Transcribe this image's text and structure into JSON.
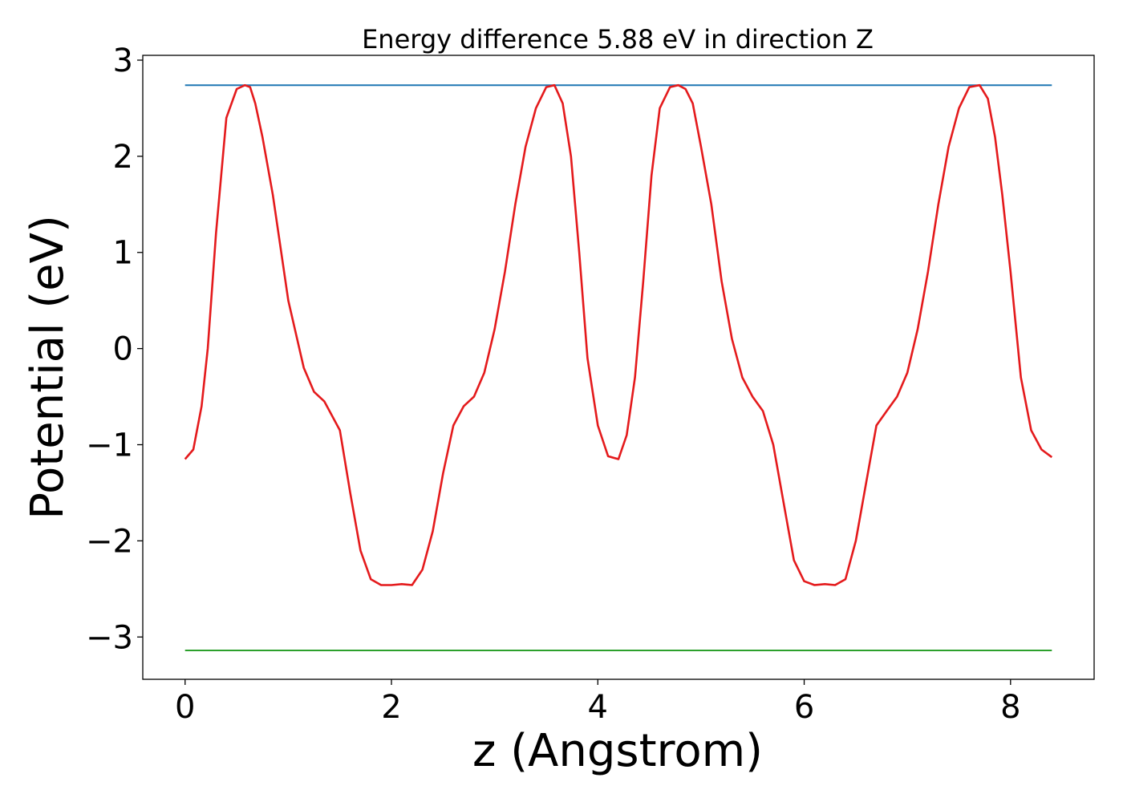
{
  "chart_data": {
    "type": "line",
    "title": "Energy difference 5.88 eV in direction Z",
    "xlabel": "z (Angstrom)",
    "ylabel": "Potential (eV)",
    "xlim": [
      -0.41,
      8.81
    ],
    "ylim": [
      -3.44,
      3.05
    ],
    "xticks": [
      0,
      2,
      4,
      6,
      8
    ],
    "xtick_labels": [
      "0",
      "2",
      "4",
      "6",
      "8"
    ],
    "yticks": [
      -3,
      -2,
      -1,
      0,
      1,
      2,
      3
    ],
    "ytick_labels": [
      "−3",
      "−2",
      "−1",
      "0",
      "1",
      "2",
      "3"
    ],
    "grid": false,
    "series": [
      {
        "color": "#1f77b4",
        "x": [
          0.0,
          8.4
        ],
        "values": [
          2.74,
          2.74
        ]
      },
      {
        "color": "#2ca02c",
        "x": [
          0.0,
          8.4
        ],
        "values": [
          -3.14,
          -3.14
        ]
      },
      {
        "color": "#e41a1c",
        "x": [
          0.0,
          0.08,
          0.16,
          0.22,
          0.3,
          0.4,
          0.5,
          0.58,
          0.63,
          0.68,
          0.75,
          0.85,
          1.0,
          1.15,
          1.25,
          1.35,
          1.5,
          1.6,
          1.7,
          1.8,
          1.9,
          2.0,
          2.1,
          2.2,
          2.3,
          2.4,
          2.5,
          2.6,
          2.7,
          2.8,
          2.9,
          3.0,
          3.1,
          3.2,
          3.3,
          3.4,
          3.5,
          3.58,
          3.66,
          3.74,
          3.82,
          3.9,
          4.0,
          4.1,
          4.2,
          4.28,
          4.36,
          4.44,
          4.52,
          4.6,
          4.7,
          4.78,
          4.85,
          4.92,
          5.0,
          5.1,
          5.2,
          5.3,
          5.4,
          5.5,
          5.6,
          5.7,
          5.8,
          5.9,
          6.0,
          6.1,
          6.2,
          6.3,
          6.4,
          6.5,
          6.6,
          6.7,
          6.8,
          6.9,
          7.0,
          7.1,
          7.2,
          7.3,
          7.4,
          7.5,
          7.6,
          7.7,
          7.78,
          7.85,
          7.92,
          8.0,
          8.1,
          8.2,
          8.3,
          8.4
        ],
        "values": [
          -1.15,
          -1.05,
          -0.6,
          0.0,
          1.2,
          2.4,
          2.7,
          2.74,
          2.72,
          2.55,
          2.2,
          1.6,
          0.5,
          -0.2,
          -0.45,
          -0.55,
          -0.85,
          -1.5,
          -2.1,
          -2.4,
          -2.46,
          -2.46,
          -2.45,
          -2.46,
          -2.3,
          -1.9,
          -1.3,
          -0.8,
          -0.6,
          -0.5,
          -0.25,
          0.2,
          0.8,
          1.5,
          2.1,
          2.5,
          2.72,
          2.74,
          2.55,
          2.0,
          1.0,
          -0.1,
          -0.8,
          -1.12,
          -1.15,
          -0.9,
          -0.3,
          0.7,
          1.8,
          2.5,
          2.72,
          2.74,
          2.7,
          2.55,
          2.1,
          1.5,
          0.7,
          0.1,
          -0.3,
          -0.5,
          -0.65,
          -1.0,
          -1.6,
          -2.2,
          -2.42,
          -2.46,
          -2.45,
          -2.46,
          -2.4,
          -2.0,
          -1.4,
          -0.8,
          -0.65,
          -0.5,
          -0.25,
          0.2,
          0.8,
          1.5,
          2.1,
          2.5,
          2.72,
          2.74,
          2.6,
          2.2,
          1.6,
          0.8,
          -0.3,
          -0.85,
          -1.05,
          -1.13
        ]
      }
    ]
  }
}
